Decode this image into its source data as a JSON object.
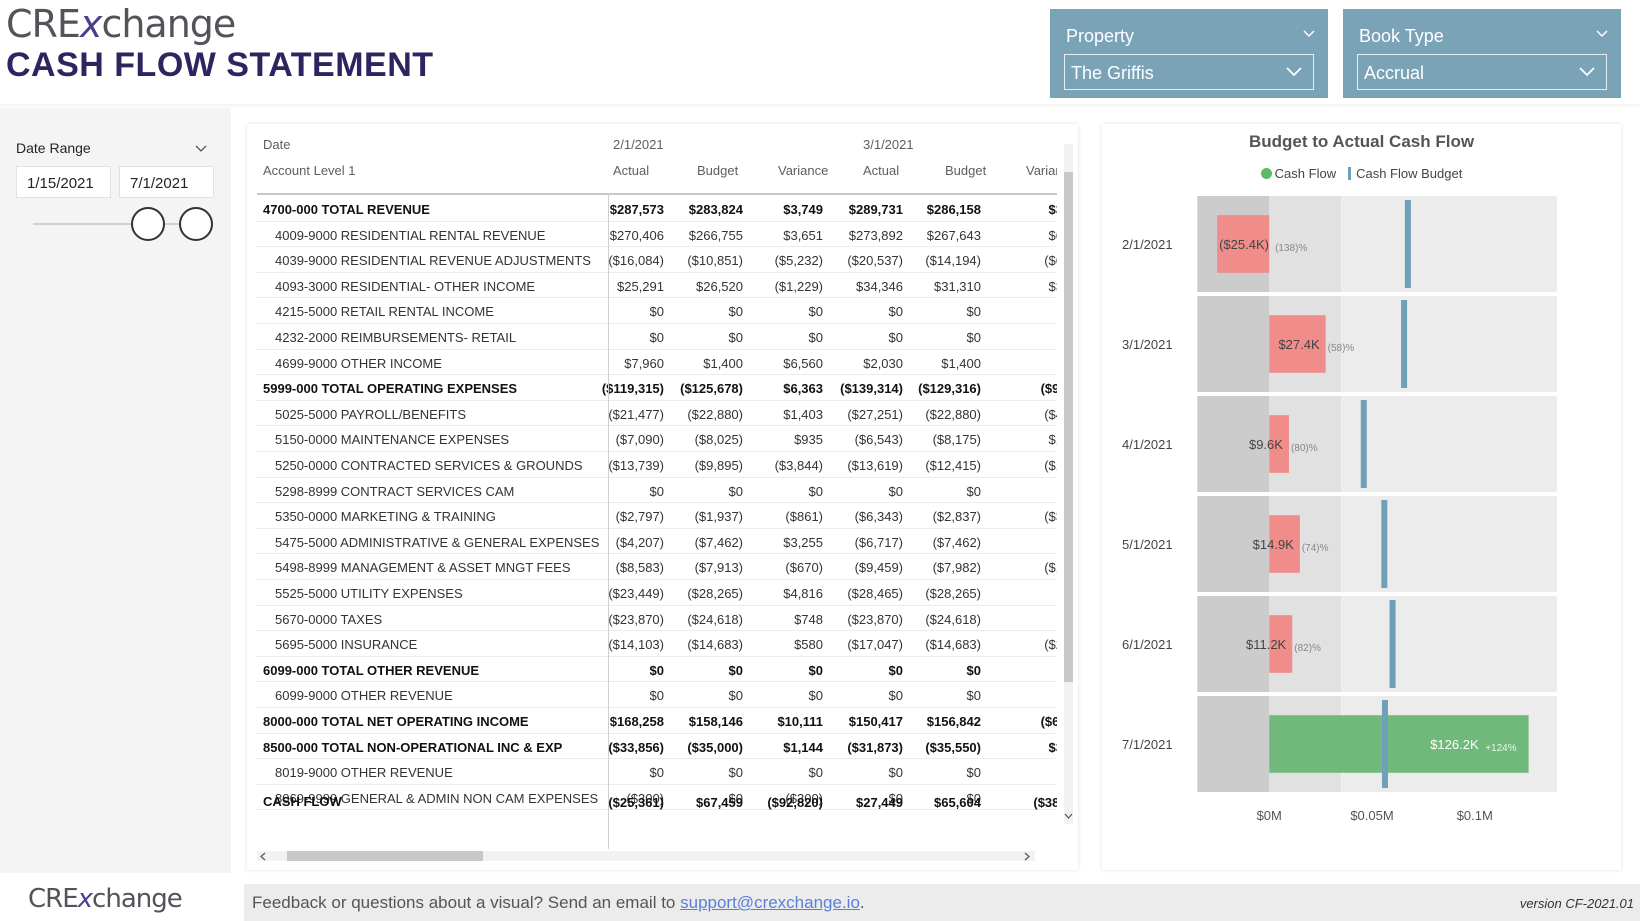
{
  "header": {
    "logo_left": "CRE",
    "logo_x": "x",
    "logo_right": "change",
    "title": "CASH FLOW STATEMENT"
  },
  "filters": {
    "property": {
      "label": "Property",
      "value": "The Griffis"
    },
    "book_type": {
      "label": "Book Type",
      "value": "Accrual"
    }
  },
  "date_range": {
    "label": "Date Range",
    "start": "1/15/2021",
    "end": "7/1/2021"
  },
  "table": {
    "date_label": "Date",
    "account_label": "Account Level 1",
    "dates": [
      "2/1/2021",
      "3/1/2021"
    ],
    "measures": [
      "Actual",
      "Budget",
      "Variance",
      "Actual",
      "Budget",
      "Varian"
    ],
    "rows": [
      {
        "name": "4700-000 TOTAL REVENUE",
        "bold": true,
        "values": [
          "$287,573",
          "$283,824",
          "$3,749",
          "$289,731",
          "$286,158",
          "$3"
        ]
      },
      {
        "name": "4009-9000 RESIDENTIAL RENTAL REVENUE",
        "bold": false,
        "values": [
          "$270,406",
          "$266,755",
          "$3,651",
          "$273,892",
          "$267,643",
          "$6"
        ]
      },
      {
        "name": "4039-9000 RESIDENTIAL REVENUE ADJUSTMENTS",
        "bold": false,
        "values": [
          "($16,084)",
          "($10,851)",
          "($5,232)",
          "($20,537)",
          "($14,194)",
          "($6"
        ]
      },
      {
        "name": "4093-3000 RESIDENTIAL- OTHER INCOME",
        "bold": false,
        "values": [
          "$25,291",
          "$26,520",
          "($1,229)",
          "$34,346",
          "$31,310",
          "$3"
        ]
      },
      {
        "name": "4215-5000 RETAIL RENTAL INCOME",
        "bold": false,
        "values": [
          "$0",
          "$0",
          "$0",
          "$0",
          "$0",
          ""
        ]
      },
      {
        "name": "4232-2000 REIMBURSEMENTS- RETAIL",
        "bold": false,
        "values": [
          "$0",
          "$0",
          "$0",
          "$0",
          "$0",
          ""
        ]
      },
      {
        "name": "4699-9000 OTHER INCOME",
        "bold": false,
        "values": [
          "$7,960",
          "$1,400",
          "$6,560",
          "$2,030",
          "$1,400",
          ""
        ]
      },
      {
        "name": "5999-000 TOTAL OPERATING EXPENSES",
        "bold": true,
        "values": [
          "($119,315)",
          "($125,678)",
          "$6,363",
          "($139,314)",
          "($129,316)",
          "($9,"
        ]
      },
      {
        "name": "5025-5000 PAYROLL/BENEFITS",
        "bold": false,
        "values": [
          "($21,477)",
          "($22,880)",
          "$1,403",
          "($27,251)",
          "($22,880)",
          "($4"
        ]
      },
      {
        "name": "5150-0000 MAINTENANCE EXPENSES",
        "bold": false,
        "values": [
          "($7,090)",
          "($8,025)",
          "$935",
          "($6,543)",
          "($8,175)",
          "$1"
        ]
      },
      {
        "name": "5250-0000 CONTRACTED SERVICES & GROUNDS",
        "bold": false,
        "values": [
          "($13,739)",
          "($9,895)",
          "($3,844)",
          "($13,619)",
          "($12,415)",
          "($1"
        ]
      },
      {
        "name": "5298-8999 CONTRACT SERVICES CAM",
        "bold": false,
        "values": [
          "$0",
          "$0",
          "$0",
          "$0",
          "$0",
          ""
        ]
      },
      {
        "name": "5350-0000 MARKETING & TRAINING",
        "bold": false,
        "values": [
          "($2,797)",
          "($1,937)",
          "($861)",
          "($6,343)",
          "($2,837)",
          "($3"
        ]
      },
      {
        "name": "5475-5000 ADMINISTRATIVE & GENERAL EXPENSES",
        "bold": false,
        "values": [
          "($4,207)",
          "($7,462)",
          "$3,255",
          "($6,717)",
          "($7,462)",
          ""
        ]
      },
      {
        "name": "5498-8999 MANAGEMENT & ASSET MNGT FEES",
        "bold": false,
        "values": [
          "($8,583)",
          "($7,913)",
          "($670)",
          "($9,459)",
          "($7,982)",
          "($1"
        ]
      },
      {
        "name": "5525-5000 UTILITY EXPENSES",
        "bold": false,
        "values": [
          "($23,449)",
          "($28,265)",
          "$4,816",
          "($28,465)",
          "($28,265)",
          "("
        ]
      },
      {
        "name": "5670-0000 TAXES",
        "bold": false,
        "values": [
          "($23,870)",
          "($24,618)",
          "$748",
          "($23,870)",
          "($24,618)",
          ""
        ]
      },
      {
        "name": "5695-5000 INSURANCE",
        "bold": false,
        "values": [
          "($14,103)",
          "($14,683)",
          "$580",
          "($17,047)",
          "($14,683)",
          "($2"
        ]
      },
      {
        "name": "6099-000 TOTAL OTHER REVENUE",
        "bold": true,
        "values": [
          "$0",
          "$0",
          "$0",
          "$0",
          "$0",
          ""
        ]
      },
      {
        "name": "6099-9000 OTHER REVENUE",
        "bold": false,
        "values": [
          "$0",
          "$0",
          "$0",
          "$0",
          "$0",
          ""
        ]
      },
      {
        "name": "8000-000 TOTAL NET OPERATING INCOME",
        "bold": true,
        "values": [
          "$168,258",
          "$158,146",
          "$10,111",
          "$150,417",
          "$156,842",
          "($6,"
        ]
      },
      {
        "name": "8500-000 TOTAL NON-OPERATIONAL INC & EXP",
        "bold": true,
        "values": [
          "($33,856)",
          "($35,000)",
          "$1,144",
          "($31,873)",
          "($35,550)",
          "$3"
        ]
      },
      {
        "name": "8019-9000 OTHER REVENUE",
        "bold": false,
        "values": [
          "$0",
          "$0",
          "$0",
          "$0",
          "$0",
          ""
        ]
      }
    ],
    "partial_row": {
      "name": "8069-9999 GENERAL & ADMIN NON CAM EXPENSES",
      "values": [
        "($300)",
        "$0",
        "($300)",
        "$0",
        "$0",
        ""
      ]
    },
    "total_row": {
      "name": "CASH FLOW",
      "values": [
        "($25,361)",
        "$67,459",
        "($92,820)",
        "$27,449",
        "$65,604",
        "($38,"
      ]
    }
  },
  "chart_data": {
    "type": "bar",
    "title": "Budget to Actual Cash Flow",
    "legend": [
      "Cash Flow",
      "Cash Flow Budget"
    ],
    "legend_position": "top-center",
    "orientation": "horizontal",
    "categories": [
      "2/1/2021",
      "3/1/2021",
      "4/1/2021",
      "5/1/2021",
      "6/1/2021",
      "7/1/2021"
    ],
    "series": [
      {
        "name": "Cash Flow",
        "values": [
          -25361,
          27449,
          9600,
          14900,
          11200,
          126200
        ]
      },
      {
        "name": "Cash Flow Budget",
        "values": [
          67459,
          65604,
          46000,
          56000,
          60000,
          56300
        ]
      }
    ],
    "data_labels": [
      "($25.4K)",
      "$27.4K",
      "$9.6K",
      "$14.9K",
      "$11.2K",
      "$126.2K"
    ],
    "pct_labels": [
      "(138)%",
      "(58)%",
      "(80)%",
      "(74)%",
      "(82)%",
      "+124%"
    ],
    "bar_colors": [
      "#f08c8a",
      "#f08c8a",
      "#f08c8a",
      "#f08c8a",
      "#f08c8a",
      "#71b97a"
    ],
    "target_color": "#6ea1b8",
    "band_colors": [
      "#cccccc",
      "#e1e1e1",
      "#ececec"
    ],
    "band_edges": [
      -0.035,
      0,
      0.035,
      0.071,
      0.14
    ],
    "x_ticks": [
      "$0M",
      "$0.05M",
      "$0.1M"
    ],
    "x_tick_values": [
      0,
      0.05,
      0.1
    ],
    "xlim": [
      -0.04,
      0.14
    ]
  },
  "footer": {
    "logo_left": "CRE",
    "logo_x": "x",
    "logo_right": "change",
    "text_before": "Feedback or questions about a visual? Send an email to ",
    "email": "support@crexchange.io",
    "text_after": ".",
    "version": "version CF-2021.01"
  }
}
